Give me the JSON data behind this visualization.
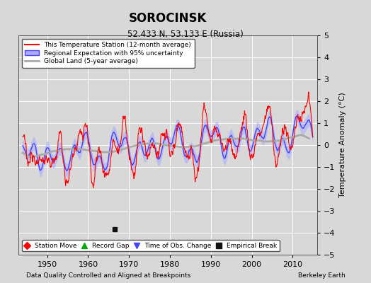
{
  "title": "SOROCINSK",
  "subtitle": "52.433 N, 53.133 E (Russia)",
  "ylabel": "Temperature Anomaly (°C)",
  "xlabel_left": "Data Quality Controlled and Aligned at Breakpoints",
  "xlabel_right": "Berkeley Earth",
  "ylim": [
    -5,
    5
  ],
  "xlim": [
    1943,
    2016
  ],
  "yticks": [
    -5,
    -4,
    -3,
    -2,
    -1,
    0,
    1,
    2,
    3,
    4,
    5
  ],
  "xticks": [
    1950,
    1960,
    1970,
    1980,
    1990,
    2000,
    2010
  ],
  "bg_color": "#d8d8d8",
  "plot_bg_color": "#d8d8d8",
  "grid_color": "white",
  "red_color": "#ff0000",
  "blue_color": "#4444ff",
  "blue_fill_color": "#aaaaff",
  "gray_color": "#aaaaaa",
  "legend_labels": [
    "This Temperature Station (12-month average)",
    "Regional Expectation with 95% uncertainty",
    "Global Land (5-year average)"
  ],
  "bottom_legend": [
    {
      "marker": "D",
      "color": "#ff0000",
      "label": "Station Move"
    },
    {
      "marker": "^",
      "color": "#00aa00",
      "label": "Record Gap"
    },
    {
      "marker": "v",
      "color": "#4444ff",
      "label": "Time of Obs. Change"
    },
    {
      "marker": "s",
      "color": "#111111",
      "label": "Empirical Break"
    }
  ],
  "empirical_break_x": 1966.5,
  "empirical_break_y": -3.85
}
